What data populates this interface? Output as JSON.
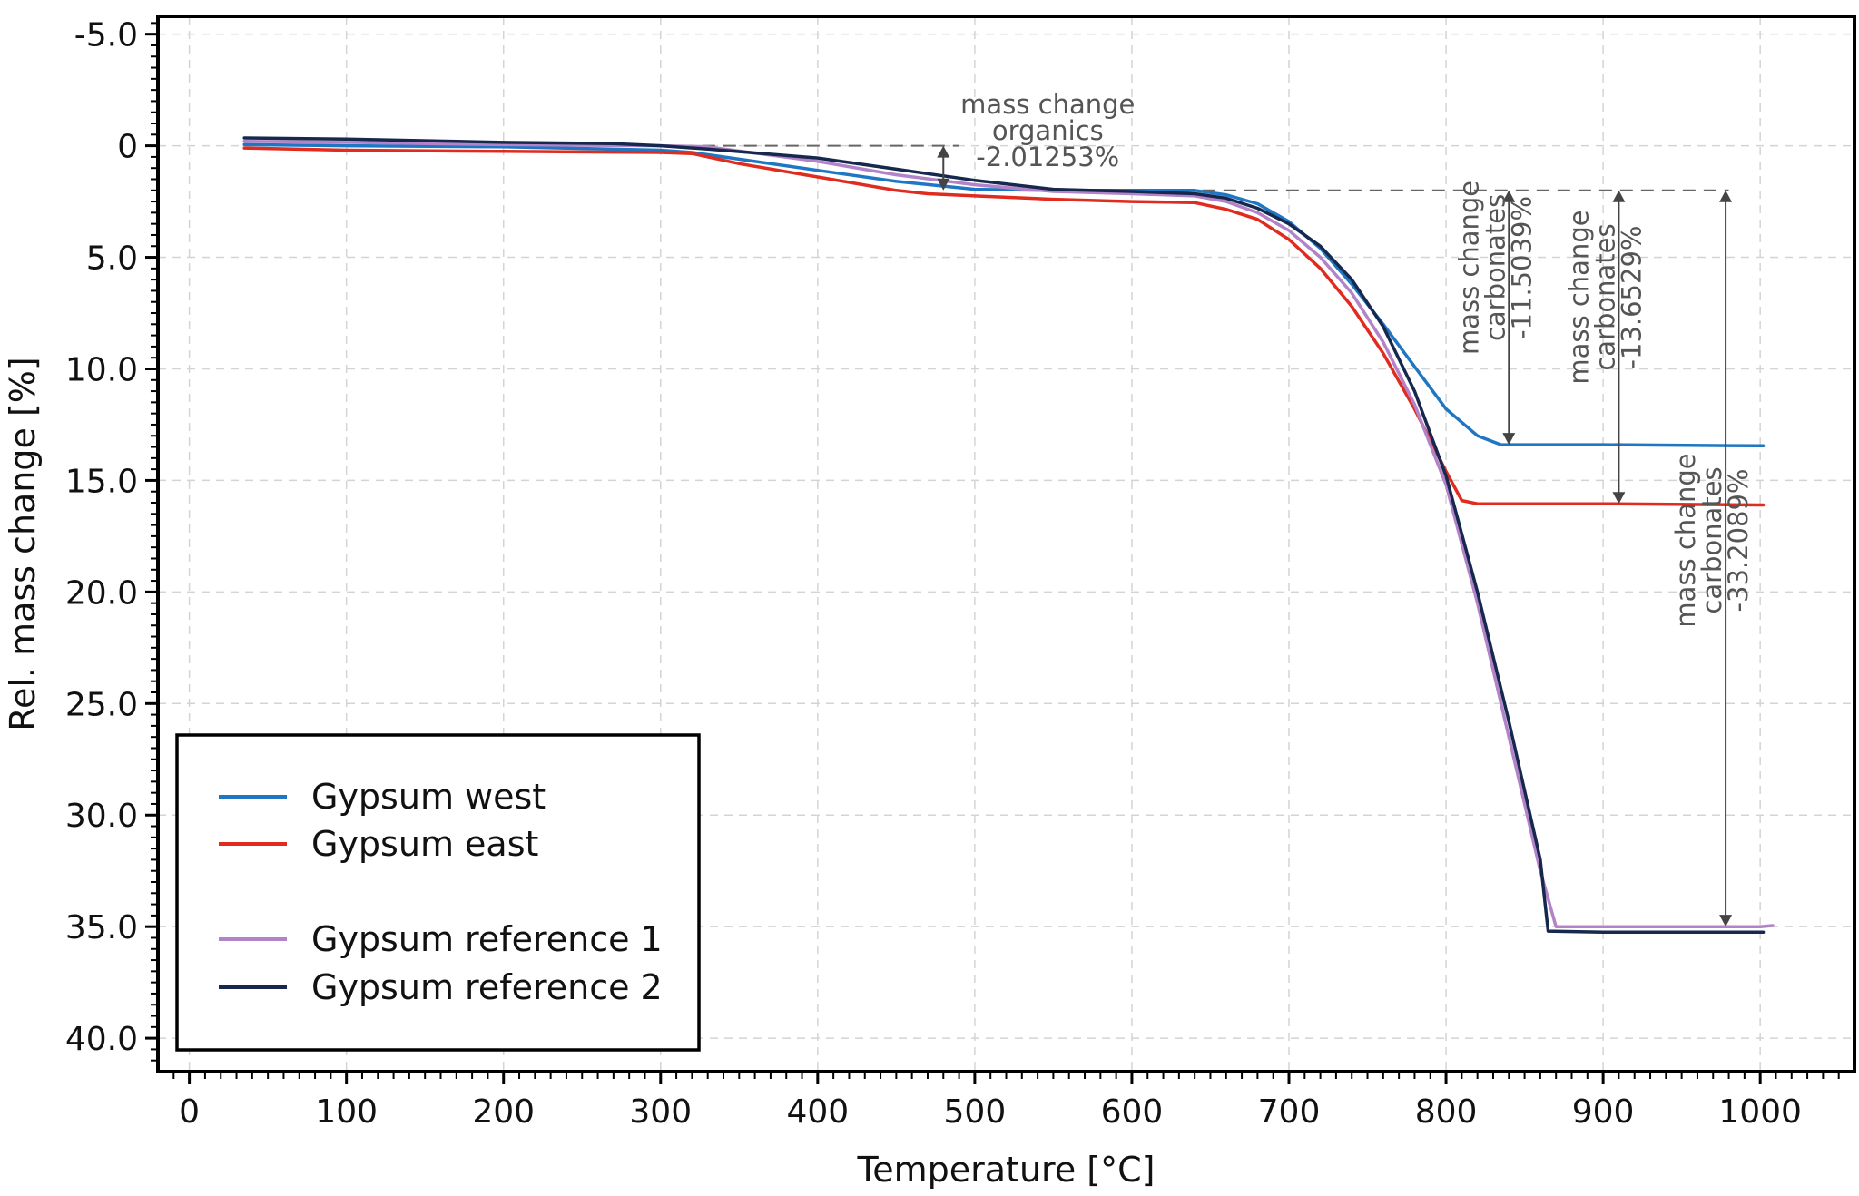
{
  "chart_data": {
    "type": "line",
    "xlabel": "Temperature [°C]",
    "ylabel": "Rel. mass change [%]",
    "xlim": [
      -20,
      1060
    ],
    "ylim": [
      -5.8,
      41.5
    ],
    "y_inverted": true,
    "grid": true,
    "x_ticks": [
      0,
      100,
      200,
      300,
      400,
      500,
      600,
      700,
      800,
      900,
      1000
    ],
    "x_tick_labels": [
      "0",
      "100",
      "200",
      "300",
      "400",
      "500",
      "600",
      "700",
      "800",
      "900",
      "1000"
    ],
    "y_ticks": [
      -5,
      0,
      5,
      10,
      15,
      20,
      25,
      30,
      35,
      40
    ],
    "y_tick_labels": [
      "-5.0",
      "0",
      "5.0",
      "10.0",
      "15.0",
      "20.0",
      "25.0",
      "30.0",
      "35.0",
      "40.0"
    ],
    "legend_position": "bottom-left",
    "series": [
      {
        "name": "Gypsum west",
        "color": "#1f77c4",
        "x": [
          35,
          100,
          200,
          300,
          320,
          350,
          400,
          450,
          500,
          550,
          600,
          640,
          660,
          680,
          700,
          720,
          740,
          760,
          780,
          800,
          820,
          835,
          850,
          900,
          1000,
          1002
        ],
        "y": [
          -0.05,
          0.0,
          0.05,
          0.2,
          0.3,
          0.6,
          1.1,
          1.6,
          1.95,
          2.0,
          2.0,
          2.0,
          2.2,
          2.6,
          3.4,
          4.6,
          6.2,
          8.0,
          9.9,
          11.8,
          13.0,
          13.4,
          13.4,
          13.4,
          13.45,
          13.45
        ]
      },
      {
        "name": "Gypsum east",
        "color": "#e02b1f",
        "x": [
          35,
          100,
          200,
          300,
          320,
          350,
          400,
          450,
          470,
          500,
          550,
          600,
          640,
          660,
          680,
          700,
          720,
          740,
          760,
          780,
          800,
          810,
          820,
          900,
          1000,
          1002
        ],
        "y": [
          0.1,
          0.2,
          0.25,
          0.3,
          0.35,
          0.8,
          1.4,
          2.0,
          2.15,
          2.25,
          2.4,
          2.5,
          2.55,
          2.85,
          3.3,
          4.2,
          5.5,
          7.2,
          9.3,
          11.8,
          14.6,
          15.9,
          16.05,
          16.05,
          16.1,
          16.1
        ]
      },
      {
        "name": "Gypsum reference 1",
        "color": "#b283c8",
        "x": [
          35,
          100,
          200,
          300,
          330,
          400,
          450,
          500,
          550,
          600,
          640,
          660,
          680,
          700,
          720,
          740,
          760,
          780,
          800,
          820,
          840,
          860,
          870,
          900,
          1000,
          1008
        ],
        "y": [
          -0.2,
          -0.15,
          -0.05,
          0.0,
          0.05,
          0.7,
          1.3,
          1.75,
          2.05,
          2.15,
          2.25,
          2.5,
          3.0,
          3.8,
          5.0,
          6.6,
          8.8,
          11.6,
          15.2,
          20.5,
          26.5,
          32.5,
          35.0,
          35.0,
          35.0,
          34.95
        ]
      },
      {
        "name": "Gypsum reference 2",
        "color": "#16284e",
        "x": [
          35,
          100,
          200,
          270,
          300,
          330,
          400,
          450,
          500,
          550,
          600,
          640,
          660,
          680,
          700,
          720,
          740,
          760,
          780,
          800,
          820,
          840,
          860,
          865,
          900,
          1002
        ],
        "y": [
          -0.35,
          -0.3,
          -0.15,
          -0.1,
          0.0,
          0.15,
          0.55,
          1.05,
          1.55,
          1.95,
          2.05,
          2.15,
          2.35,
          2.8,
          3.5,
          4.5,
          6.0,
          8.1,
          11.0,
          14.8,
          20.0,
          25.8,
          32.0,
          35.2,
          35.25,
          35.25
        ]
      }
    ],
    "annotations": [
      {
        "lines": [
          "mass change",
          "organics",
          "-2.01253%"
        ],
        "x": 480,
        "y_from": 0.0,
        "y_to": 2.0,
        "rotated": false
      },
      {
        "lines": [
          "mass change",
          "carbonates",
          "-11.5039%"
        ],
        "x": 840,
        "y_from": 2.0,
        "y_to": 13.4,
        "rotated": true
      },
      {
        "lines": [
          "mass change",
          "carbonates",
          "-13.6529%"
        ],
        "x": 910,
        "y_from": 2.0,
        "y_to": 16.05,
        "rotated": true
      },
      {
        "lines": [
          "mass change",
          "carbonates",
          "-33.2089%"
        ],
        "x": 978,
        "y_from": 2.0,
        "y_to": 35.0,
        "rotated": true
      }
    ],
    "reference_lines": [
      {
        "y": 0.0,
        "x_from": 300,
        "x_to": 490
      },
      {
        "y": 2.0,
        "x_from": 645,
        "x_to": 980
      }
    ]
  }
}
